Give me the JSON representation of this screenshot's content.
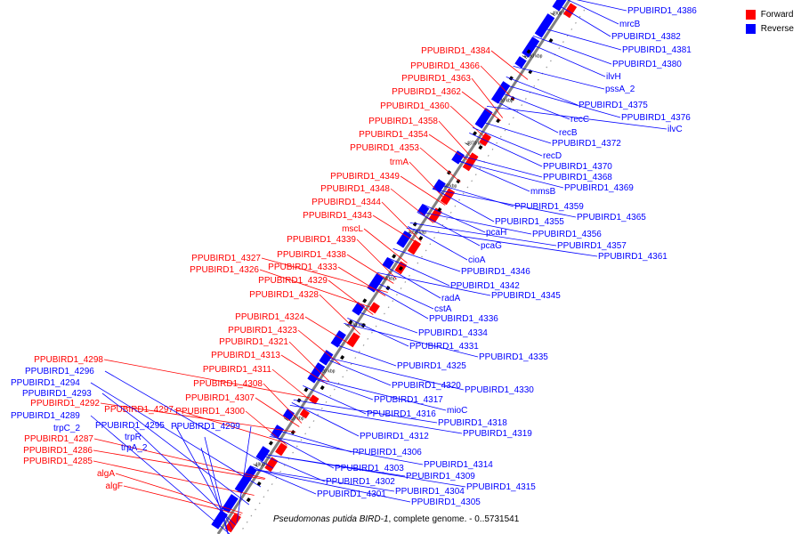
{
  "legend": {
    "forward": {
      "label": "Forward",
      "color": "#ff0000"
    },
    "reverse": {
      "label": "Reverse",
      "color": "#0000ff"
    }
  },
  "caption": {
    "organism": "Pseudomonas putida BIRD-1",
    "rest": ", complete genome. - 0..5731541"
  },
  "ticks": [
    "4800 kbp",
    "4810 kbp",
    "4820 kbp",
    "4830 kbp",
    "4840 kbp",
    "4850 kbp",
    "4860 kbp",
    "4870 kbp",
    "4880 kbp",
    "4890 kbp",
    "4900 kbp"
  ],
  "forward_labels": [
    "PPUBIRD1_4384",
    "PPUBIRD1_4366",
    "PPUBIRD1_4363",
    "PPUBIRD1_4362",
    "PPUBIRD1_4360",
    "PPUBIRD1_4358",
    "PPUBIRD1_4354",
    "PPUBIRD1_4353",
    "trmA",
    "PPUBIRD1_4349",
    "PPUBIRD1_4348",
    "PPUBIRD1_4344",
    "PPUBIRD1_4343",
    "mscL",
    "PPUBIRD1_4339",
    "PPUBIRD1_4338",
    "PPUBIRD1_4327",
    "PPUBIRD1_4326",
    "PPUBIRD1_4333",
    "PPUBIRD1_4329",
    "PPUBIRD1_4328",
    "PPUBIRD1_4324",
    "PPUBIRD1_4323",
    "PPUBIRD1_4321",
    "PPUBIRD1_4313",
    "PPUBIRD1_4311",
    "PPUBIRD1_4308",
    "PPUBIRD1_4307",
    "PPUBIRD1_4300",
    "PPUBIRD1_4298",
    "PPUBIRD1_4292",
    "PPUBIRD1_4297",
    "PPUBIRD1_4287",
    "PPUBIRD1_4286",
    "PPUBIRD1_4285",
    "algA",
    "algF"
  ],
  "reverse_labels": [
    "PPUBIRD1_4386",
    "mrcB",
    "PPUBIRD1_4382",
    "PPUBIRD1_4381",
    "PPUBIRD1_4380",
    "ilvH",
    "pssA_2",
    "PPUBIRD1_4375",
    "PPUBIRD1_4376",
    "ilvC",
    "recC",
    "recB",
    "PPUBIRD1_4372",
    "recD",
    "PPUBIRD1_4370",
    "PPUBIRD1_4368",
    "PPUBIRD1_4369",
    "mmsB",
    "PPUBIRD1_4359",
    "PPUBIRD1_4365",
    "PPUBIRD1_4355",
    "PPUBIRD1_4356",
    "pcaH",
    "pcaG",
    "PPUBIRD1_4357",
    "PPUBIRD1_4361",
    "cioA",
    "PPUBIRD1_4346",
    "PPUBIRD1_4342",
    "radA",
    "PPUBIRD1_4345",
    "cstA",
    "PPUBIRD1_4336",
    "PPUBIRD1_4334",
    "PPUBIRD1_4331",
    "PPUBIRD1_4335",
    "PPUBIRD1_4325",
    "PPUBIRD1_4320",
    "PPUBIRD1_4330",
    "PPUBIRD1_4317",
    "PPUBIRD1_4316",
    "mioC",
    "PPUBIRD1_4318",
    "PPUBIRD1_4319",
    "PPUBIRD1_4296",
    "PPUBIRD1_4294",
    "PPUBIRD1_4293",
    "PPUBIRD1_4289",
    "trpC_2",
    "PPUBIRD1_4295",
    "trpR",
    "trpA_2",
    "PPUBIRD1_4299",
    "PPUBIRD1_4312",
    "PPUBIRD1_4306",
    "PPUBIRD1_4314",
    "PPUBIRD1_4303",
    "PPUBIRD1_4309",
    "PPUBIRD1_4302",
    "PPUBIRD1_4315",
    "PPUBIRD1_4304",
    "PPUBIRD1_4301",
    "PPUBIRD1_4305"
  ]
}
